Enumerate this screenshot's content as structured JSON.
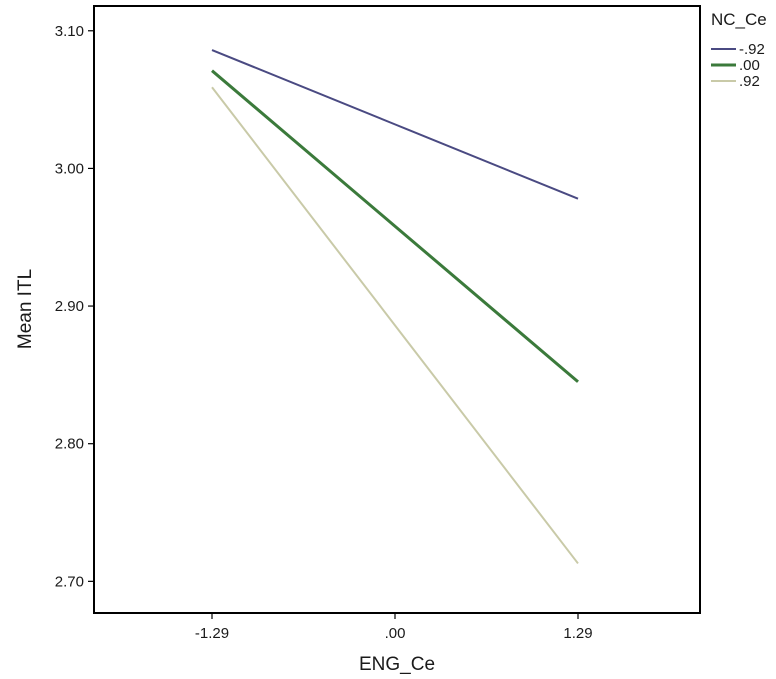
{
  "chart_data": {
    "type": "line",
    "xlabel": "ENG_Ce",
    "ylabel": "Mean ITL",
    "x": [
      -1.29,
      0,
      1.29
    ],
    "x_tick_labels": [
      "-1.29",
      ".00",
      "1.29"
    ],
    "ylim": [
      2.677,
      3.118
    ],
    "y_ticks": [
      2.7,
      2.8,
      2.9,
      3.0,
      3.1
    ],
    "y_tick_labels": [
      "2.70",
      "2.80",
      "2.90",
      "3.00",
      "3.10"
    ],
    "grid": false,
    "legend": {
      "title": "NC_Ce",
      "position": "top-right-outside"
    },
    "series": [
      {
        "name": "-.92",
        "color": "#4a4a82",
        "values": [
          3.086,
          3.032,
          2.978
        ]
      },
      {
        "name": ".00",
        "color": "#3b7a3b",
        "values": [
          3.071,
          2.958,
          2.845
        ]
      },
      {
        "name": ".92",
        "color": "#c9caa8",
        "values": [
          3.059,
          2.886,
          2.713
        ]
      }
    ]
  }
}
